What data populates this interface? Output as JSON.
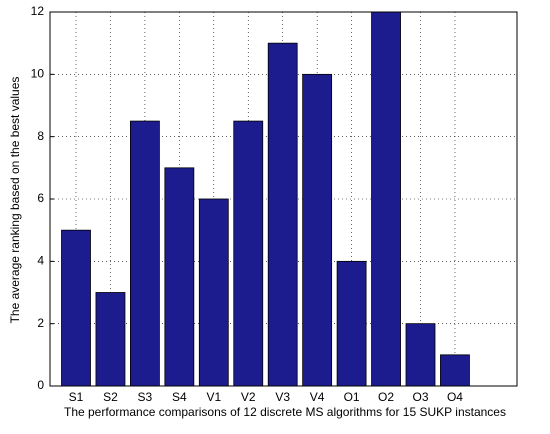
{
  "chart_data": {
    "type": "bar",
    "xlabel": "The performance comparisons of 12 discrete MS algorithms for 15 SUKP instances",
    "ylabel": "The average ranking based on the best values",
    "categories": [
      "S1",
      "S2",
      "S3",
      "S4",
      "V1",
      "V2",
      "V3",
      "V4",
      "O1",
      "O2",
      "O3",
      "O4"
    ],
    "values": [
      5,
      3,
      8.5,
      7,
      6,
      8.5,
      11,
      10,
      4,
      12,
      2,
      1
    ],
    "color": "#1c1c8f",
    "ylim": [
      0,
      12
    ],
    "yticks": [
      0,
      2,
      4,
      6,
      8,
      10,
      12
    ],
    "grid": true
  }
}
